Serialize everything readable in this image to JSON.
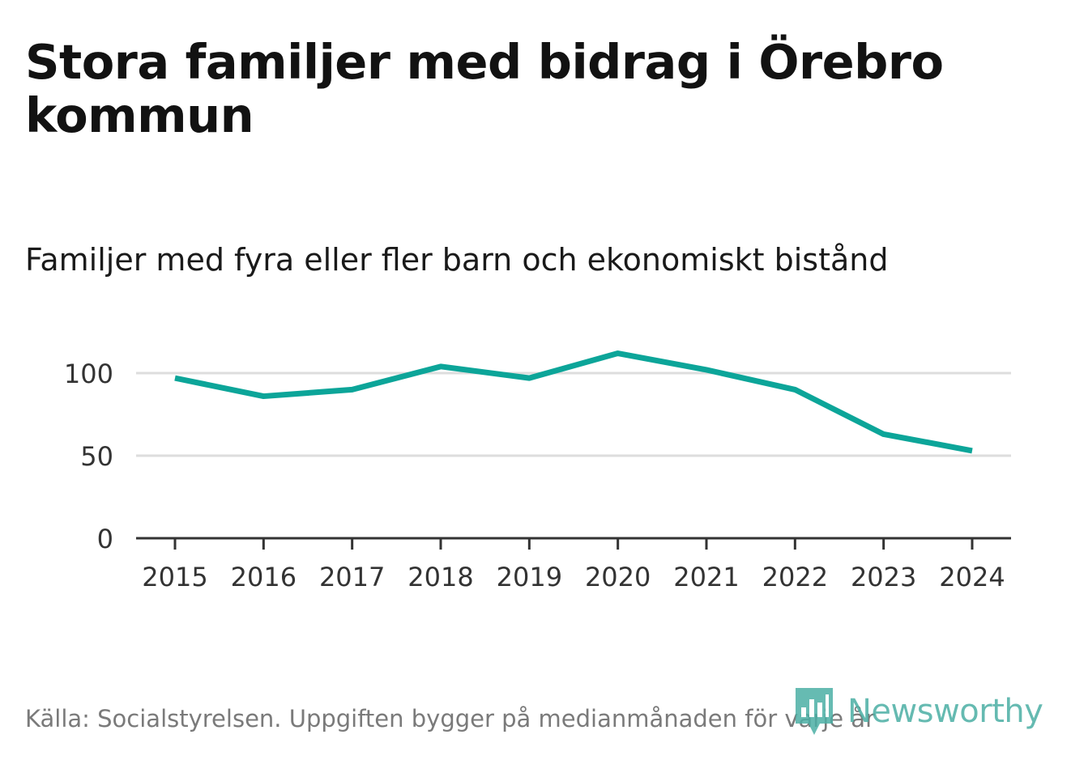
{
  "header": {
    "title": "Stora familjer med bidrag i Örebro kommun",
    "subtitle": "Familjer med fyra eller fler barn och ekonomiskt bistånd"
  },
  "chart_data": {
    "type": "line",
    "title": "Stora familjer med bidrag i Örebro kommun",
    "subtitle": "Familjer med fyra eller fler barn och ekonomiskt bistånd",
    "categories": [
      "2015",
      "2016",
      "2017",
      "2018",
      "2019",
      "2020",
      "2021",
      "2022",
      "2023",
      "2024"
    ],
    "series": [
      {
        "name": "Familjer med fyra eller fler barn och ekonomiskt bistånd",
        "values": [
          97,
          86,
          90,
          104,
          97,
          112,
          102,
          90,
          63,
          53
        ],
        "color": "#0ca599"
      }
    ],
    "yticks": [
      0,
      50,
      100
    ],
    "ylim": [
      0,
      130
    ],
    "xlabel": "",
    "ylabel": "",
    "grid": true,
    "legend": "none"
  },
  "footer": {
    "source": "Källa: Socialstyrelsen. Uppgiften bygger på medianmånaden för varje år",
    "brand": "Newsworthy",
    "brand_icon": "newsworthy-logo-icon"
  },
  "colors": {
    "line": "#0ca599",
    "grid": "#dddddd",
    "axis": "#333333",
    "brand": "#4bafa4"
  }
}
